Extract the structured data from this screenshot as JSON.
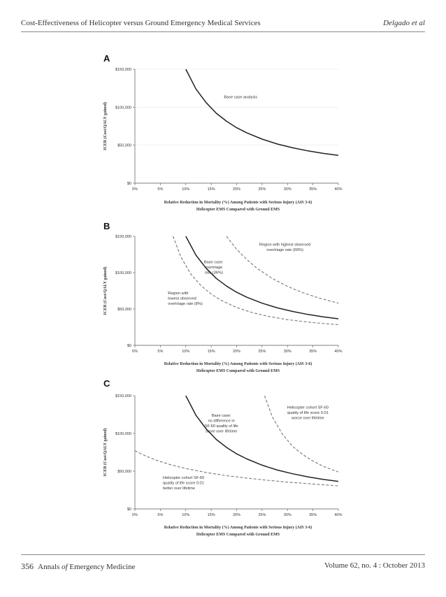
{
  "header": {
    "left": "Cost-Effectiveness of Helicopter versus Ground Emergency Medical Services",
    "right": "Delgado et al"
  },
  "footer": {
    "page": "356",
    "journal_a": "Annals",
    "journal_of": "of",
    "journal_b": "Emergency Medicine",
    "volume": "Volume 62, no. 4 : October 2013"
  },
  "colors": {
    "line": "#222222",
    "dashed": "#777777",
    "grid": "#e6e6e6",
    "axis": "#555555"
  },
  "chart_data": [
    {
      "panel": "A",
      "type": "line",
      "ylabel": "ICER (Cost/QALY gained)",
      "xlabel_line1": "Relative Reduction in Mortality (%) Among Patients with Serious Injury (AIS 3-6)",
      "xlabel_line2": "Helicopter EMS Compared with Ground EMS",
      "xlim": [
        0,
        40
      ],
      "ylim": [
        0,
        150000
      ],
      "xticks": [
        "0%",
        "5%",
        "10%",
        "15%",
        "20%",
        "25%",
        "30%",
        "35%",
        "40%"
      ],
      "yticks": [
        "$0",
        "$50,000",
        "$100,000",
        "$150,000"
      ],
      "grid": true,
      "series": [
        {
          "style": "solid",
          "x": [
            10,
            12,
            14,
            16,
            18,
            20,
            22,
            25,
            28,
            31,
            34,
            37,
            40
          ],
          "y": [
            150000,
            124000,
            106000,
            92000,
            81500,
            73000,
            66200,
            58000,
            51500,
            46600,
            42500,
            39200,
            36500
          ]
        }
      ],
      "annotations": [
        {
          "lines": [
            "Base case analysis"
          ],
          "x": 17.5,
          "y": 112000
        }
      ]
    },
    {
      "panel": "B",
      "type": "line",
      "ylabel": "ICER (Cost/QALY gained)",
      "xlabel_line1": "Relative Reduction in Mortality (%) Among Patients with Serious Injury (AIS 3-6)",
      "xlabel_line2": "Helicopter EMS Compared with Ground EMS",
      "xlim": [
        0,
        40
      ],
      "ylim": [
        0,
        150000
      ],
      "xticks": [
        "0%",
        "5%",
        "10%",
        "15%",
        "20%",
        "25%",
        "30%",
        "35%",
        "40%"
      ],
      "yticks": [
        "$0",
        "$50,000",
        "$100,000",
        "$150,000"
      ],
      "grid": false,
      "series": [
        {
          "style": "solid",
          "x": [
            10,
            12,
            14,
            16,
            18,
            20,
            22,
            25,
            28,
            31,
            34,
            37,
            40
          ],
          "y": [
            150000,
            124000,
            106000,
            92000,
            81500,
            73000,
            66200,
            58000,
            51500,
            46600,
            42500,
            39200,
            36500
          ]
        },
        {
          "style": "dashed",
          "x": [
            7.5,
            9,
            11,
            13,
            15,
            17,
            20,
            23,
            26,
            30,
            34,
            37,
            40
          ],
          "y": [
            150000,
            122000,
            98000,
            82000,
            70500,
            61800,
            52000,
            45200,
            40200,
            35300,
            32000,
            30000,
            28500
          ]
        },
        {
          "style": "dashed",
          "x": [
            18,
            20,
            22,
            24,
            27,
            30,
            33,
            36,
            40
          ],
          "y": [
            150000,
            132000,
            118000,
            106000,
            92000,
            81000,
            72500,
            65500,
            58000
          ]
        }
      ],
      "annotations": [
        {
          "lines": [
            "Region with highest observed",
            "overtriage rate (69%)"
          ],
          "x": 29.5,
          "y": 137000,
          "anchor": "middle"
        },
        {
          "lines": [
            "Base case:",
            "overtriage",
            "rate (36%)"
          ],
          "x": 15.5,
          "y": 113000,
          "anchor": "middle"
        },
        {
          "lines": [
            "Region with",
            "lowest observed",
            "overtriage rate (8%)"
          ],
          "x": 6.5,
          "y": 70000,
          "anchor": "start"
        }
      ]
    },
    {
      "panel": "C",
      "type": "line",
      "ylabel": "ICER (Cost/QALY gained)",
      "xlabel_line1": "Relative Reduction in Mortality (%) Among Patients with Serious Injury (AIS 3-6)",
      "xlabel_line2": "Helicopter EMS Compared with Ground EMS",
      "xlim": [
        0,
        40
      ],
      "ylim": [
        0,
        150000
      ],
      "xticks": [
        "0%",
        "5%",
        "10%",
        "15%",
        "20%",
        "25%",
        "30%",
        "35%",
        "40%"
      ],
      "yticks": [
        "$0",
        "$50,000",
        "$100,000",
        "$150,000"
      ],
      "grid": false,
      "series": [
        {
          "style": "solid",
          "x": [
            10,
            12,
            14,
            16,
            18,
            20,
            22,
            25,
            28,
            31,
            34,
            37,
            40
          ],
          "y": [
            150000,
            124000,
            106000,
            92000,
            81500,
            73000,
            66200,
            58000,
            51500,
            46600,
            42500,
            39200,
            36500
          ]
        },
        {
          "style": "dashed",
          "x": [
            0,
            2,
            4,
            7,
            10,
            14,
            18,
            22,
            26,
            30,
            34,
            40
          ],
          "y": [
            77000,
            70500,
            65000,
            58500,
            53500,
            48200,
            44000,
            40800,
            38000,
            35500,
            33500,
            30500
          ]
        },
        {
          "style": "dashed",
          "x": [
            25.5,
            27,
            29,
            31,
            33,
            35,
            37,
            40
          ],
          "y": [
            150000,
            122000,
            99000,
            83000,
            72000,
            63500,
            56500,
            49000
          ]
        }
      ],
      "annotations": [
        {
          "lines": [
            "Base case:",
            "no difference in",
            "SF-60 quality of life",
            "score over lifetime"
          ],
          "x": 17,
          "y": 122000,
          "anchor": "middle"
        },
        {
          "lines": [
            "Helicopter cohort SF-60",
            "quality of life score 0.01",
            "worse over lifetime"
          ],
          "x": 34,
          "y": 133000,
          "anchor": "middle"
        },
        {
          "lines": [
            "Helicopter cohort SF-60",
            "quality of life score 0.01",
            "better over lifetime"
          ],
          "x": 5.5,
          "y": 40000,
          "anchor": "start"
        }
      ]
    }
  ]
}
